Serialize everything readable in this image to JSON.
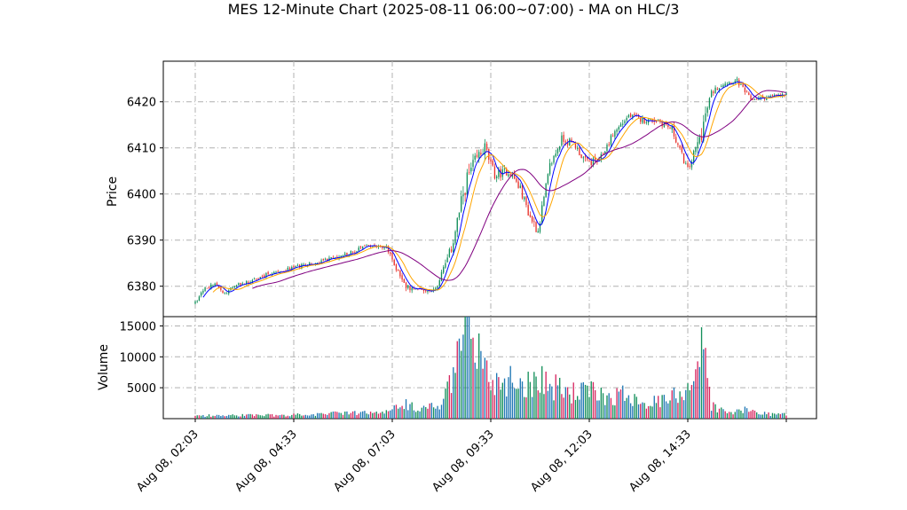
{
  "chart_data": {
    "type": "candlestick",
    "title": "MES 12-Minute Chart (2025-08-11 06:00~07:00) - MA on HLC/3",
    "price_panel": {
      "ylabel": "Price",
      "yticks": [
        6380,
        6390,
        6400,
        6410,
        6420
      ],
      "ylim": [
        6373.4,
        6428.8
      ],
      "grid": true
    },
    "volume_panel": {
      "ylabel": "Volume",
      "yticks": [
        5000,
        10000,
        15000
      ],
      "ylim": [
        0,
        16500
      ],
      "grid": true
    },
    "xticks": [
      {
        "label": "Aug 08, 02:03",
        "bar_index": 0
      },
      {
        "label": "Aug 08, 04:33",
        "bar_index": 50
      },
      {
        "label": "Aug 08, 07:03",
        "bar_index": 100
      },
      {
        "label": "Aug 08, 09:33",
        "bar_index": 150
      },
      {
        "label": "Aug 08, 12:03",
        "bar_index": 200
      },
      {
        "label": "Aug 08, 14:33",
        "bar_index": 250
      },
      {
        "label": "",
        "bar_index": 300
      }
    ],
    "bar_count": 301,
    "close_anchors": [
      [
        0,
        6376.5
      ],
      [
        5,
        6379.5
      ],
      [
        10,
        6380.5
      ],
      [
        15,
        6378.5
      ],
      [
        20,
        6380.0
      ],
      [
        30,
        6381.5
      ],
      [
        40,
        6383.0
      ],
      [
        50,
        6384.0
      ],
      [
        60,
        6385.0
      ],
      [
        70,
        6386.0
      ],
      [
        80,
        6387.5
      ],
      [
        90,
        6389.0
      ],
      [
        97,
        6388.5
      ],
      [
        102,
        6384.0
      ],
      [
        107,
        6380.0
      ],
      [
        115,
        6379.0
      ],
      [
        122,
        6379.5
      ],
      [
        130,
        6388.0
      ],
      [
        137,
        6402.0
      ],
      [
        142,
        6407.0
      ],
      [
        147,
        6410.0
      ],
      [
        152,
        6404.0
      ],
      [
        160,
        6405.0
      ],
      [
        166,
        6400.0
      ],
      [
        170,
        6395.0
      ],
      [
        174,
        6392.0
      ],
      [
        180,
        6406.0
      ],
      [
        186,
        6412.0
      ],
      [
        192,
        6411.0
      ],
      [
        198,
        6407.0
      ],
      [
        205,
        6407.0
      ],
      [
        212,
        6413.0
      ],
      [
        220,
        6417.0
      ],
      [
        227,
        6416.0
      ],
      [
        235,
        6416.0
      ],
      [
        242,
        6414.0
      ],
      [
        250,
        6405.0
      ],
      [
        256,
        6412.0
      ],
      [
        262,
        6422.0
      ],
      [
        268,
        6424.0
      ],
      [
        275,
        6424.5
      ],
      [
        282,
        6420.5
      ],
      [
        290,
        6421.0
      ],
      [
        300,
        6421.5
      ]
    ],
    "volume_anchors": [
      [
        0,
        500
      ],
      [
        50,
        600
      ],
      [
        80,
        900
      ],
      [
        95,
        900
      ],
      [
        100,
        1400
      ],
      [
        105,
        2300
      ],
      [
        115,
        1800
      ],
      [
        125,
        2000
      ],
      [
        130,
        6000
      ],
      [
        135,
        11000
      ],
      [
        140,
        15000
      ],
      [
        145,
        10000
      ],
      [
        150,
        6000
      ],
      [
        160,
        6500
      ],
      [
        170,
        5500
      ],
      [
        175,
        7500
      ],
      [
        180,
        5000
      ],
      [
        185,
        5000
      ],
      [
        190,
        4200
      ],
      [
        200,
        4400
      ],
      [
        210,
        3600
      ],
      [
        220,
        4000
      ],
      [
        230,
        2500
      ],
      [
        240,
        3000
      ],
      [
        250,
        5200
      ],
      [
        255,
        9000
      ],
      [
        258,
        12000
      ],
      [
        262,
        2200
      ],
      [
        270,
        900
      ],
      [
        280,
        1400
      ],
      [
        290,
        800
      ],
      [
        300,
        700
      ]
    ],
    "ma_periods": [
      5,
      10,
      30
    ],
    "series": [
      {
        "role": "ma_fast",
        "color": "#0000ff"
      },
      {
        "role": "ma_mid",
        "color": "#ffa500"
      },
      {
        "role": "ma_slow",
        "color": "#800080"
      }
    ],
    "colors": {
      "up": "#138f5a",
      "down": "#e8312a",
      "vol_a": "#1f77b4",
      "vol_b": "#d62760",
      "vol_c": "#138f5a",
      "grid": "#b0b0b0"
    }
  }
}
